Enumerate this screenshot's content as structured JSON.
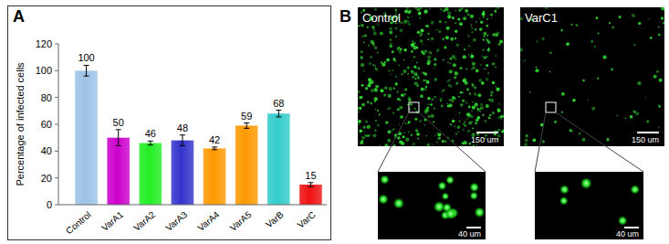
{
  "panel_labels": {
    "a": "A",
    "b": "B"
  },
  "chart_data": {
    "type": "bar",
    "y_label": "Percentage of infected cells",
    "categories": [
      "Control",
      "VarA1",
      "VarA2",
      "VarA3",
      "VarA4",
      "VarA5",
      "VarB",
      "VarC"
    ],
    "values": [
      100,
      50,
      46,
      48,
      42,
      59,
      68,
      15
    ],
    "errors": [
      4,
      6,
      1.5,
      4,
      1,
      2,
      2.5,
      1.5
    ],
    "colors": [
      "#9dc3e6",
      "#cc00cc",
      "#22ee22",
      "#3333cc",
      "#ff9900",
      "#ff9900",
      "#33cccc",
      "#ee1111"
    ],
    "ylim": [
      0,
      120
    ],
    "yticks": [
      0,
      20,
      40,
      60,
      80,
      100,
      120
    ],
    "grid": false,
    "data_labels": true
  },
  "images": [
    {
      "title": "Control",
      "scale_bar": "150 um",
      "inset_scale_bar": "40 um"
    },
    {
      "title": "VarC1",
      "scale_bar": "150 um",
      "inset_scale_bar": "40 um"
    }
  ]
}
